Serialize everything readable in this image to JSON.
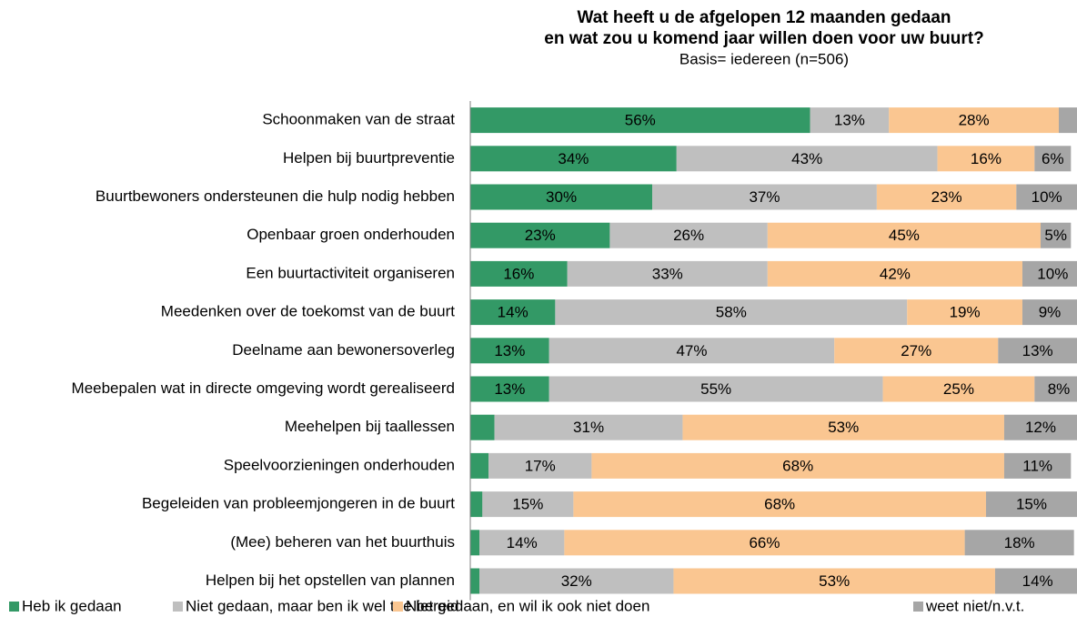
{
  "chart_data": {
    "type": "stacked-barh",
    "title": [
      "Wat heeft u de afgelopen 12 maanden gedaan",
      "en wat zou u komend jaar willen doen voor uw buurt?"
    ],
    "subtitle": "Basis= iedereen (n=506)",
    "categories": [
      "Schoonmaken van de straat",
      "Helpen bij buurtpreventie",
      "Buurtbewoners ondersteunen die hulp nodig hebben",
      "Openbaar groen onderhouden",
      "Een buurtactiviteit organiseren",
      "Meedenken over de toekomst van de buurt",
      "Deelname aan bewonersoverleg",
      "Meebepalen wat in directe omgeving wordt gerealiseerd",
      "Meehelpen bij taallessen",
      "Speelvoorzieningen onderhouden",
      "Begeleiden van probleemjongeren in de buurt",
      "(Mee) beheren van het buurthuis",
      "Helpen bij het opstellen van plannen"
    ],
    "xlim": [
      0,
      100
    ],
    "series": [
      {
        "name": "Heb ik gedaan",
        "color": "#339966",
        "values": [
          56,
          34,
          30,
          23,
          16,
          14,
          13,
          13,
          4,
          3,
          2,
          1.5,
          1.5
        ],
        "value_labels": [
          "56%",
          "34%",
          "30%",
          "23%",
          "16%",
          "14%",
          "13%",
          "13%",
          null,
          null,
          null,
          null,
          null
        ]
      },
      {
        "name": "Niet gedaan, maar ben ik wel toe bereid",
        "color": "#bfbfbf",
        "values": [
          13,
          43,
          37,
          26,
          33,
          58,
          47,
          55,
          31,
          17,
          15,
          14,
          32
        ],
        "value_labels": [
          "13%",
          "43%",
          "37%",
          "26%",
          "33%",
          "58%",
          "47%",
          "55%",
          "31%",
          "17%",
          "15%",
          "14%",
          "32%"
        ]
      },
      {
        "name": "Niet gedaan, en wil ik ook niet doen",
        "color": "#fac691",
        "values": [
          28,
          16,
          23,
          45,
          42,
          19,
          27,
          25,
          53,
          68,
          68,
          66,
          53
        ],
        "value_labels": [
          "28%",
          "16%",
          "23%",
          "45%",
          "42%",
          "19%",
          "27%",
          "25%",
          "53%",
          "68%",
          "68%",
          "66%",
          "53%"
        ]
      },
      {
        "name": "weet niet/n.v.t.",
        "color": "#a6a6a6",
        "values": [
          3,
          6,
          10,
          5,
          10,
          9,
          13,
          8,
          12,
          11,
          15,
          18,
          14
        ],
        "value_labels": [
          null,
          "6%",
          "10%",
          "5%",
          "10%",
          "9%",
          "13%",
          "8%",
          "12%",
          "11%",
          "15%",
          "18%",
          "14%"
        ]
      }
    ]
  }
}
